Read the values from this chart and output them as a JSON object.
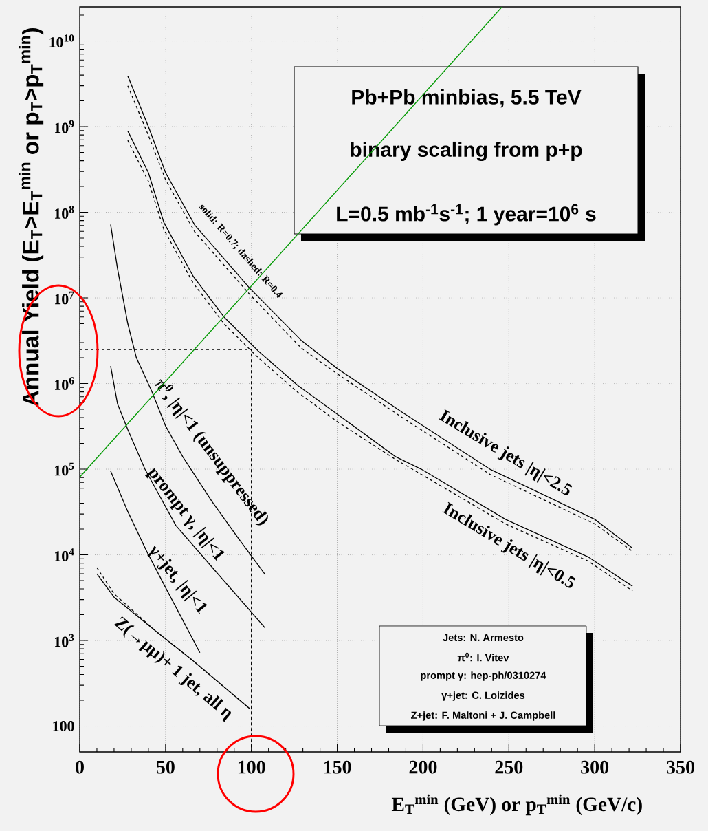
{
  "chart_data": {
    "type": "line",
    "title": "Pb+Pb minbias, 5.5 TeV",
    "subtitle": "binary scaling from p+p",
    "xlabel": "E$_{T}$$^{min}$ (GeV)  or p$_{T}$$^{min}$ (GeV/c)",
    "ylabel": "Annual Yield (E$_{T}$>E$_{T}$$^{min}$ or p$_{T}$>p$_{T}$$^{min}$)",
    "log": "y",
    "grid": true,
    "xlim": [
      0,
      350
    ],
    "xticks": [
      0,
      50,
      100,
      150,
      200,
      250,
      300,
      350
    ],
    "ylim": [
      50,
      25000000000.0
    ],
    "yticks": [
      100,
      {
        "value": 1000,
        "label": "10$^{3}$"
      },
      {
        "value": 10000,
        "label": "10$^{4}$"
      },
      {
        "value": 100000,
        "label": "10$^{5}$"
      },
      {
        "value": 1000000,
        "label": "10$^{6}$"
      },
      {
        "value": 10000000,
        "label": "10$^{7}$"
      },
      {
        "value": 100000000,
        "label": "10$^{8}$"
      },
      {
        "value": 1000000000,
        "label": "10$^{9}$"
      },
      {
        "value": 10000000000,
        "label": "10$^{10}$"
      }
    ],
    "series": [
      {
        "color": "#000000",
        "line_style": "solid",
        "x": [
          28,
          40,
          50,
          67,
          99,
          129,
          150,
          188,
          239,
          300,
          322
        ],
        "values": [
          3900000000.0,
          1000000000.0,
          290000000.0,
          71000000.0,
          13000000.0,
          3200000.0,
          1500000.0,
          460000.0,
          100000.0,
          26000.0,
          12000.0
        ]
      },
      {
        "color": "#000000",
        "line_style": "dashed",
        "x": [
          28,
          40,
          50,
          67,
          99,
          129,
          150,
          188,
          239,
          300,
          322
        ],
        "values": [
          3000000000.0,
          790000000.0,
          240000000.0,
          59000000.0,
          11000000.0,
          2600000.0,
          1300000.0,
          400000.0,
          87000.0,
          23000.0,
          11000.0
        ]
      },
      {
        "color": "#000000",
        "line_style": "solid",
        "x": [
          28,
          40,
          49,
          66,
          84,
          104,
          127,
          150,
          184,
          199,
          248,
          296,
          322
        ],
        "values": [
          890000000.0,
          290000000.0,
          76000000.0,
          18000000.0,
          6000000.0,
          2400000.0,
          950000.0,
          440000.0,
          140000.0,
          100000.0,
          26000.0,
          9500.0,
          4300.0
        ]
      },
      {
        "color": "#000000",
        "line_style": "dashed",
        "x": [
          28,
          40,
          49,
          66,
          84,
          104,
          127,
          150,
          184,
          199,
          248,
          296,
          322
        ],
        "values": [
          690000000.0,
          230000000.0,
          63000000.0,
          15000000.0,
          5000000.0,
          2000000.0,
          790000.0,
          360000.0,
          130000.0,
          87000.0,
          23000.0,
          8500.0,
          3800.0
        ]
      },
      {
        "color": "#000000",
        "line_style": "solid",
        "x": [
          18,
          22,
          28,
          33,
          42,
          50,
          60,
          77,
          92,
          108
        ],
        "values": [
          72000000.0,
          22000000.0,
          5000000.0,
          2000000.0,
          810000.0,
          320000.0,
          140000.0,
          42000.0,
          16000.0,
          5900.0
        ]
      },
      {
        "color": "#000000",
        "line_style": "solid",
        "x": [
          18,
          22,
          28,
          38,
          56,
          77,
          108
        ],
        "values": [
          1600000.0,
          580000.0,
          290000.0,
          100000.0,
          22000.0,
          7200.0,
          1400.0
        ]
      },
      {
        "color": "#000000",
        "line_style": "solid",
        "x": [
          18,
          28,
          39,
          51,
          70
        ],
        "values": [
          95000.0,
          32000.0,
          11000.0,
          3800.0,
          720
        ]
      },
      {
        "color": "#000000",
        "line_style": "solid",
        "x": [
          10,
          20,
          44,
          66,
          99
        ],
        "values": [
          6000.0,
          3200.0,
          1300.0,
          580,
          160
        ]
      },
      {
        "color": "#000000",
        "line_style": "dashed",
        "x": [
          10,
          20,
          44,
          66,
          99
        ],
        "values": [
          7100.0,
          3500.0,
          1300.0,
          580,
          160
        ]
      },
      {
        "color": "#000000",
        "line_style": "dashed",
        "x": [
          0,
          100,
          100
        ],
        "values": [
          2500000.0,
          2500000.0,
          50
        ]
      },
      {
        "color": "#009900",
        "line_style": "solid",
        "x": [
          0,
          246
        ],
        "values": [
          81000.0,
          25000000000.0
        ]
      }
    ],
    "annotations": [
      "L=0.5 mb$^{-1}$s$^{-1}$; 1 year=10$^{6}$ s",
      "Jets: N. Armesto",
      "π$^{0}$: I. Vitev",
      "prompt γ: hep-ph/0310274",
      "γ+jet: C. Loizides",
      "Z+jet: F. Maltoni + J. Campbell",
      "solid: R=0.7; dashed: R=0.4",
      "Inclusive jets |η|<2.5",
      "Inclusive jets |η|<0.5",
      "π$^{0}$, |η|<1 (unsuppressed)",
      "prompt γ, |η|<1",
      "γ+jet, |η|<1",
      "Z(→μμ)+ 1 jet, all η"
    ]
  }
}
